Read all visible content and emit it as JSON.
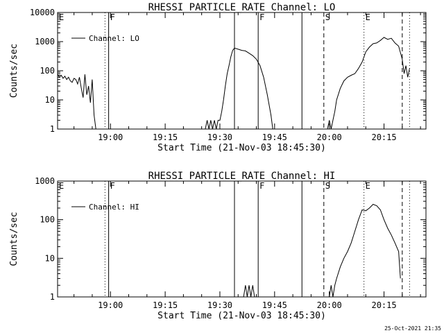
{
  "timestamp": "25-Oct-2021 21:35",
  "chart_data": [
    {
      "type": "line",
      "title": "RHESSI PARTICLE_RATE Channel: LO",
      "xlabel": "Start Time (21-Nov-03 18:45:30)",
      "ylabel": "Counts/sec",
      "y_scale": "log",
      "ylim": [
        1,
        10000
      ],
      "y_tick_labels": [
        "1",
        "10",
        "100",
        "1000",
        "10000"
      ],
      "xlim": [
        "18:45:30",
        "20:26:30"
      ],
      "x_tick_labels": [
        "19:00",
        "19:15",
        "19:30",
        "19:45",
        "20:00",
        "20:15"
      ],
      "legend": {
        "position": "top-left",
        "entries": [
          "Channel: LO"
        ]
      },
      "grid": false,
      "event_markers": [
        {
          "label": "E",
          "time": "18:45:30",
          "style": "solid"
        },
        {
          "label": "",
          "time": "18:58:30",
          "style": "dotted"
        },
        {
          "label": "F",
          "time": "18:59:30",
          "style": "solid"
        },
        {
          "label": "",
          "time": "19:34:00",
          "style": "solid"
        },
        {
          "label": "F",
          "time": "19:40:30",
          "style": "solid"
        },
        {
          "label": "",
          "time": "19:52:30",
          "style": "solid"
        },
        {
          "label": "S",
          "time": "19:58:30",
          "style": "dashed"
        },
        {
          "label": "E",
          "time": "20:09:30",
          "style": "dotted"
        },
        {
          "label": "",
          "time": "20:20:00",
          "style": "dashed"
        },
        {
          "label": "",
          "time": "20:22:00",
          "style": "dotted"
        }
      ],
      "series": [
        {
          "name": "Channel: LO",
          "segments": [
            {
              "x": [
                "18:45:30",
                "18:46:00",
                "18:46:30",
                "18:47:00",
                "18:47:30",
                "18:48:00",
                "18:48:30",
                "18:49:00",
                "18:49:30",
                "18:50:00",
                "18:50:30",
                "18:51:00",
                "18:51:30",
                "18:52:00",
                "18:52:30",
                "18:53:00",
                "18:53:30",
                "18:54:00",
                "18:54:30",
                "18:55:00",
                "18:55:30",
                "18:56:00"
              ],
              "y": [
                75,
                60,
                70,
                55,
                65,
                50,
                60,
                45,
                40,
                55,
                50,
                35,
                60,
                25,
                12,
                75,
                15,
                30,
                8,
                50,
                3,
                1
              ]
            },
            {
              "x": [
                "19:26:00",
                "19:26:30",
                "19:27:00",
                "19:27:30",
                "19:28:00",
                "19:28:30",
                "19:29:00",
                "19:29:30",
                "19:30:00",
                "19:30:30",
                "19:31:00",
                "19:31:30",
                "19:32:00",
                "19:32:30",
                "19:33:00",
                "19:33:30",
                "19:34:00",
                "19:35:00",
                "19:36:00",
                "19:37:00",
                "19:38:00",
                "19:39:00",
                "19:40:00",
                "19:41:00",
                "19:42:00",
                "19:43:00",
                "19:44:00",
                "19:44:30"
              ],
              "y": [
                1,
                2,
                1,
                2,
                1,
                2,
                1,
                2,
                2,
                4,
                10,
                30,
                80,
                150,
                300,
                500,
                600,
                550,
                500,
                480,
                400,
                330,
                250,
                150,
                60,
                15,
                3,
                1
              ]
            },
            {
              "x": [
                "19:59:30",
                "20:00:00",
                "20:00:30",
                "20:01:00",
                "20:01:30",
                "20:02:00",
                "20:03:00",
                "20:04:00",
                "20:05:00",
                "20:06:00",
                "20:07:00",
                "20:08:00",
                "20:09:00",
                "20:10:00",
                "20:11:00",
                "20:12:00",
                "20:13:00",
                "20:14:00",
                "20:15:00",
                "20:16:00",
                "20:17:00",
                "20:18:00",
                "20:19:00",
                "20:20:00",
                "20:20:30",
                "20:21:00",
                "20:21:30",
                "20:22:00"
              ],
              "y": [
                1,
                2,
                1,
                2,
                4,
                10,
                25,
                45,
                60,
                70,
                80,
                120,
                200,
                450,
                650,
                850,
                900,
                1100,
                1400,
                1200,
                1300,
                900,
                700,
                250,
                80,
                150,
                60,
                120
              ]
            }
          ]
        }
      ]
    },
    {
      "type": "line",
      "title": "RHESSI PARTICLE_RATE Channel: HI",
      "xlabel": "Start Time (21-Nov-03 18:45:30)",
      "ylabel": "Counts/sec",
      "y_scale": "log",
      "ylim": [
        1,
        1000
      ],
      "y_tick_labels": [
        "1",
        "10",
        "100",
        "1000"
      ],
      "xlim": [
        "18:45:30",
        "20:26:30"
      ],
      "x_tick_labels": [
        "19:00",
        "19:15",
        "19:30",
        "19:45",
        "20:00",
        "20:15"
      ],
      "legend": {
        "position": "top-left",
        "entries": [
          "Channel: HI"
        ]
      },
      "grid": false,
      "event_markers": [
        {
          "label": "E",
          "time": "18:45:30",
          "style": "solid"
        },
        {
          "label": "",
          "time": "18:58:30",
          "style": "dotted"
        },
        {
          "label": "F",
          "time": "18:59:30",
          "style": "solid"
        },
        {
          "label": "",
          "time": "19:34:00",
          "style": "solid"
        },
        {
          "label": "F",
          "time": "19:40:30",
          "style": "solid"
        },
        {
          "label": "",
          "time": "19:52:30",
          "style": "solid"
        },
        {
          "label": "S",
          "time": "19:58:30",
          "style": "dashed"
        },
        {
          "label": "E",
          "time": "20:09:30",
          "style": "dotted"
        },
        {
          "label": "",
          "time": "20:20:00",
          "style": "dashed"
        },
        {
          "label": "",
          "time": "20:22:00",
          "style": "dotted"
        }
      ],
      "series": [
        {
          "name": "Channel: HI",
          "segments": [
            {
              "x": [
                "19:36:30",
                "19:37:00",
                "19:37:30",
                "19:38:00",
                "19:38:30",
                "19:39:00",
                "19:39:30"
              ],
              "y": [
                1,
                2,
                1,
                2,
                1,
                2,
                1
              ]
            },
            {
              "x": [
                "20:00:00",
                "20:00:30",
                "20:01:00",
                "20:01:30",
                "20:02:00",
                "20:03:00",
                "20:04:00",
                "20:05:00",
                "20:06:00",
                "20:07:00",
                "20:08:00",
                "20:09:00",
                "20:10:00",
                "20:11:00",
                "20:12:00",
                "20:13:00",
                "20:14:00",
                "20:15:00",
                "20:16:00",
                "20:17:00",
                "20:18:00",
                "20:19:00",
                "20:19:30"
              ],
              "y": [
                1,
                2,
                1,
                2,
                3,
                6,
                10,
                15,
                25,
                50,
                100,
                180,
                170,
                200,
                250,
                230,
                180,
                100,
                60,
                40,
                25,
                15,
                3
              ]
            }
          ]
        }
      ]
    }
  ]
}
